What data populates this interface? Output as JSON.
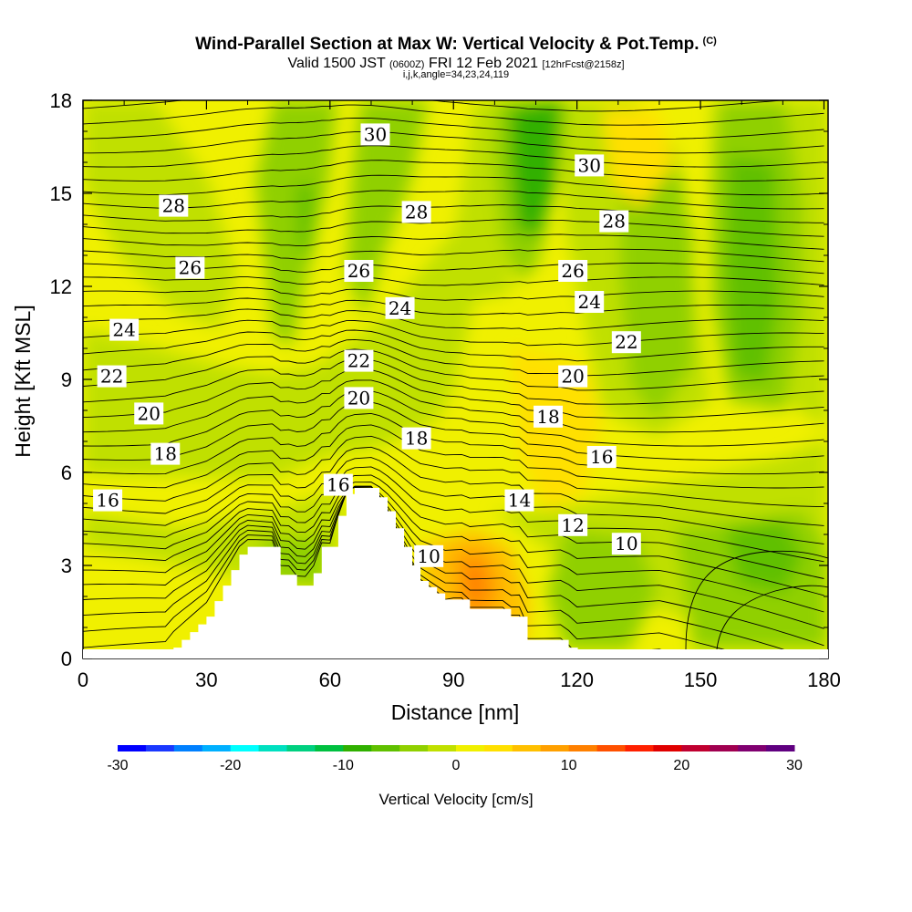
{
  "title": {
    "main": "Wind-Parallel Section at Max W: Vertical Velocity & Pot.Temp.",
    "copyright": "(C)",
    "valid_prefix": "Valid 1500 JST",
    "valid_utc": "(0600Z)",
    "valid_date": "FRI 12 Feb 2021",
    "forecast": "[12hrFcst@2158z]",
    "grid": "i,j,k,angle=34,23,24,119"
  },
  "chart_data": {
    "type": "heatmap",
    "xlabel": "Distance [nm]",
    "ylabel": "Height [Kft MSL]",
    "xlim": [
      0,
      181
    ],
    "ylim": [
      0,
      18
    ],
    "x_ticks": [
      0,
      30,
      60,
      90,
      120,
      150,
      180
    ],
    "y_ticks": [
      0,
      3,
      6,
      9,
      12,
      15,
      18
    ],
    "grid": false,
    "colorbar": {
      "label": "Vertical Velocity [cm/s]",
      "range": [
        -30,
        30
      ],
      "ticks": [
        -30,
        -20,
        -10,
        0,
        10,
        20,
        30
      ],
      "colors": [
        "#0000ff",
        "#1a38ff",
        "#0080ff",
        "#00b0ff",
        "#00ffff",
        "#00e0c0",
        "#00d080",
        "#00c040",
        "#30b000",
        "#60c000",
        "#90d000",
        "#c0e000",
        "#f0f000",
        "#ffe000",
        "#ffc000",
        "#ffa000",
        "#ff8000",
        "#ff5000",
        "#ff2000",
        "#e00000",
        "#c00030",
        "#a00050",
        "#800070",
        "#600080"
      ]
    },
    "wind_parallel_terrain_kft": {
      "x": [
        22,
        24,
        26,
        28,
        30,
        32,
        34,
        36,
        38,
        40,
        42,
        44,
        46,
        48,
        50,
        52,
        54,
        56,
        58,
        60,
        62,
        64,
        66,
        68,
        70,
        72,
        74,
        76,
        78,
        80,
        82,
        84,
        86,
        88,
        90,
        92,
        94,
        96,
        98,
        100,
        102,
        104,
        106,
        108,
        110,
        112,
        114,
        116,
        118
      ],
      "height": [
        0.35,
        0.6,
        0.85,
        1.1,
        1.35,
        1.85,
        2.35,
        2.85,
        3.35,
        3.6,
        3.6,
        3.6,
        3.6,
        2.7,
        2.7,
        2.35,
        2.35,
        2.75,
        3.6,
        3.6,
        4.6,
        5.3,
        5.5,
        5.5,
        5.5,
        5.2,
        4.75,
        4.2,
        3.6,
        3.0,
        2.5,
        2.3,
        2.1,
        1.9,
        1.9,
        1.9,
        1.6,
        1.6,
        1.6,
        1.6,
        1.6,
        1.35,
        1.35,
        0.6,
        0.6,
        0.6,
        0.6,
        0.6,
        0.35
      ]
    },
    "potential_temperature_labels": [
      {
        "value": "30",
        "x": 71,
        "y": 16.9
      },
      {
        "value": "30",
        "x": 123,
        "y": 15.9
      },
      {
        "value": "28",
        "x": 22,
        "y": 14.6
      },
      {
        "value": "28",
        "x": 81,
        "y": 14.4
      },
      {
        "value": "28",
        "x": 129,
        "y": 14.1
      },
      {
        "value": "26",
        "x": 26,
        "y": 12.6
      },
      {
        "value": "26",
        "x": 67,
        "y": 12.5
      },
      {
        "value": "26",
        "x": 119,
        "y": 12.5
      },
      {
        "value": "24",
        "x": 10,
        "y": 10.6
      },
      {
        "value": "24",
        "x": 77,
        "y": 11.3
      },
      {
        "value": "24",
        "x": 123,
        "y": 11.5
      },
      {
        "value": "22",
        "x": 7,
        "y": 9.1
      },
      {
        "value": "22",
        "x": 67,
        "y": 9.6
      },
      {
        "value": "22",
        "x": 132,
        "y": 10.2
      },
      {
        "value": "20",
        "x": 16,
        "y": 7.9
      },
      {
        "value": "20",
        "x": 67,
        "y": 8.4
      },
      {
        "value": "20",
        "x": 119,
        "y": 9.1
      },
      {
        "value": "18",
        "x": 20,
        "y": 6.6
      },
      {
        "value": "18",
        "x": 81,
        "y": 7.1
      },
      {
        "value": "18",
        "x": 113,
        "y": 7.8
      },
      {
        "value": "16",
        "x": 6,
        "y": 5.1
      },
      {
        "value": "16",
        "x": 62,
        "y": 5.6
      },
      {
        "value": "16",
        "x": 126,
        "y": 6.5
      },
      {
        "value": "14",
        "x": 106,
        "y": 5.1
      },
      {
        "value": "12",
        "x": 119,
        "y": 4.3
      },
      {
        "value": "10",
        "x": 84,
        "y": 3.3
      },
      {
        "value": "10",
        "x": 132,
        "y": 3.7
      }
    ]
  }
}
